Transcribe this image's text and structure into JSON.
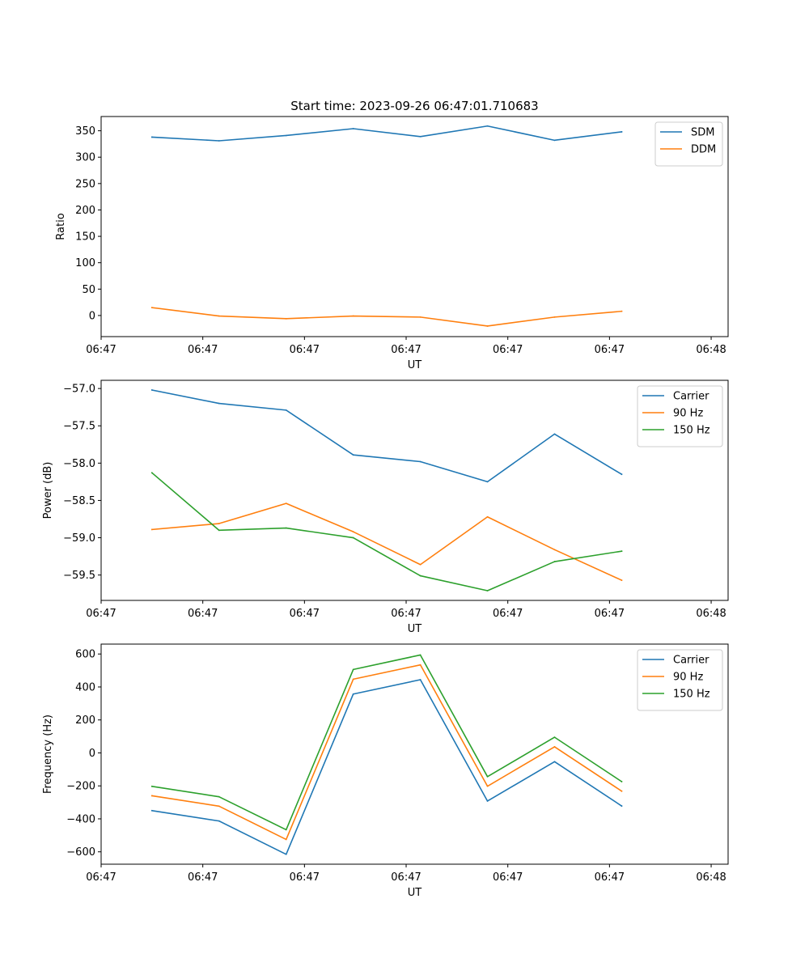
{
  "figure": {
    "title": "Start time: 2023-09-26 06:47:01.710683"
  },
  "colors": {
    "blue": "#1f77b4",
    "orange": "#ff7f0e",
    "green": "#2ca02c",
    "axis": "#000000",
    "legend_border": "#cccccc"
  },
  "chart_data": [
    {
      "type": "line",
      "title": "Start time: 2023-09-26 06:47:01.710683",
      "xlabel": "UT",
      "ylabel": "Ratio",
      "xlim": [
        0,
        9.25
      ],
      "ylim": [
        -40,
        377
      ],
      "x_ticks": [
        0,
        1.5,
        3,
        4.5,
        6,
        7.5,
        9
      ],
      "x_tick_labels": [
        "06:47",
        "06:47",
        "06:47",
        "06:47",
        "06:47",
        "06:47",
        "06:48"
      ],
      "y_ticks": [
        0,
        50,
        100,
        150,
        200,
        250,
        300,
        350
      ],
      "y_tick_labels": [
        "0",
        "50",
        "100",
        "150",
        "200",
        "250",
        "300",
        "350"
      ],
      "legend_position": "top-right",
      "x": [
        0.75,
        1.74,
        2.73,
        3.72,
        4.71,
        5.7,
        6.69,
        7.68
      ],
      "series": [
        {
          "name": "SDM",
          "color": "#1f77b4",
          "values": [
            338,
            331,
            341,
            354,
            339,
            359,
            332,
            348
          ]
        },
        {
          "name": "DDM",
          "color": "#ff7f0e",
          "values": [
            15,
            -1,
            -6,
            -1,
            -3,
            -20,
            -3,
            8
          ]
        }
      ]
    },
    {
      "type": "line",
      "title": "",
      "xlabel": "UT",
      "ylabel": "Power (dB)",
      "xlim": [
        0,
        9.25
      ],
      "ylim": [
        -59.84,
        -56.89
      ],
      "x_ticks": [
        0,
        1.5,
        3,
        4.5,
        6,
        7.5,
        9
      ],
      "x_tick_labels": [
        "06:47",
        "06:47",
        "06:47",
        "06:47",
        "06:47",
        "06:47",
        "06:48"
      ],
      "y_ticks": [
        -59.5,
        -59.0,
        -58.5,
        -58.0,
        -57.5,
        -57.0
      ],
      "y_tick_labels": [
        "−59.5",
        "−59.0",
        "−58.5",
        "−58.0",
        "−57.5",
        "−57.0"
      ],
      "legend_position": "top-right",
      "x": [
        0.75,
        1.74,
        2.73,
        3.72,
        4.71,
        5.7,
        6.69,
        7.68
      ],
      "series": [
        {
          "name": "Carrier",
          "color": "#1f77b4",
          "values": [
            -57.02,
            -57.2,
            -57.29,
            -57.89,
            -57.98,
            -58.25,
            -57.61,
            -58.15
          ]
        },
        {
          "name": "90 Hz",
          "color": "#ff7f0e",
          "values": [
            -58.89,
            -58.81,
            -58.54,
            -58.92,
            -59.36,
            -58.72,
            -59.16,
            -59.57
          ]
        },
        {
          "name": "150 Hz",
          "color": "#2ca02c",
          "values": [
            -58.13,
            -58.9,
            -58.87,
            -59.0,
            -59.51,
            -59.71,
            -59.32,
            -59.18
          ]
        }
      ]
    },
    {
      "type": "line",
      "title": "",
      "xlabel": "UT",
      "ylabel": "Frequency (Hz)",
      "xlim": [
        0,
        9.25
      ],
      "ylim": [
        -675,
        660
      ],
      "x_ticks": [
        0,
        1.5,
        3,
        4.5,
        6,
        7.5,
        9
      ],
      "x_tick_labels": [
        "06:47",
        "06:47",
        "06:47",
        "06:47",
        "06:47",
        "06:47",
        "06:48"
      ],
      "y_ticks": [
        -600,
        -400,
        -200,
        0,
        200,
        400,
        600
      ],
      "y_tick_labels": [
        "−600",
        "−400",
        "−200",
        "0",
        "200",
        "400",
        "600"
      ],
      "legend_position": "top-right",
      "x": [
        0.75,
        1.74,
        2.73,
        3.72,
        4.71,
        5.7,
        6.69,
        7.68
      ],
      "series": [
        {
          "name": "Carrier",
          "color": "#1f77b4",
          "values": [
            -350,
            -413,
            -615,
            357,
            444,
            -292,
            -53,
            -322
          ]
        },
        {
          "name": "90 Hz",
          "color": "#ff7f0e",
          "values": [
            -260,
            -323,
            -525,
            447,
            534,
            -202,
            37,
            -232
          ]
        },
        {
          "name": "150 Hz",
          "color": "#2ca02c",
          "values": [
            -203,
            -266,
            -466,
            506,
            594,
            -144,
            95,
            -174
          ]
        }
      ]
    }
  ]
}
